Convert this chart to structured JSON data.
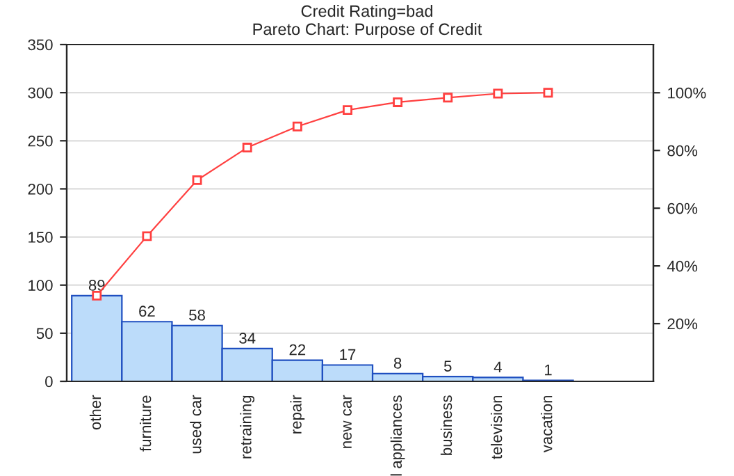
{
  "chart_data": {
    "type": "bar",
    "title": "Credit Rating=bad",
    "subtitle": "Pareto Chart: Purpose of Credit",
    "categories": [
      "other",
      "furniture",
      "used car",
      "retraining",
      "repair",
      "new car",
      "l appliances",
      "business",
      "television",
      "vacation"
    ],
    "series": [
      {
        "color": "#bcdcfa",
        "values": [
          89,
          62,
          58,
          34,
          22,
          17,
          8,
          5,
          4,
          1
        ],
        "value_labels": [
          "89",
          "62",
          "58",
          "34",
          "22",
          "17",
          "8",
          "5",
          "4",
          "1"
        ]
      },
      {
        "type": "line",
        "axis": "y2",
        "color": "#ff4040",
        "marker": "square",
        "values": [
          29.7,
          50.3,
          69.7,
          81.0,
          88.3,
          94.0,
          96.7,
          98.3,
          99.7,
          100
        ]
      }
    ],
    "ylim": [
      0,
      350
    ],
    "yticks": [
      0,
      50,
      100,
      150,
      200,
      250,
      300,
      350
    ],
    "y2lim": [
      0,
      116.7
    ],
    "y2ticks": [
      {
        "value": 20,
        "label": "20%"
      },
      {
        "value": 40,
        "label": "40%"
      },
      {
        "value": 60,
        "label": "60%"
      },
      {
        "value": 80,
        "label": "80%"
      },
      {
        "value": 100,
        "label": "100%"
      }
    ],
    "grid": "y"
  }
}
